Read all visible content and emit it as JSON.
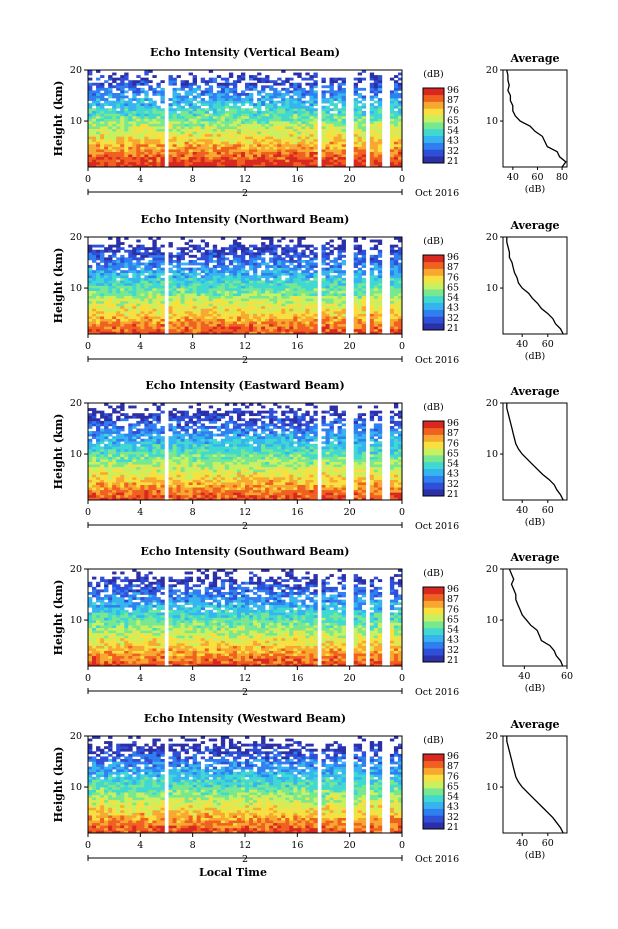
{
  "chart_data": [
    {
      "type": "heatmap",
      "title": "Echo Intensity (Vertical Beam)",
      "xlabel": "",
      "ylabel": "Height (km)",
      "xlim": [
        0,
        24
      ],
      "ylim": [
        1,
        20
      ],
      "x_ticks": [
        "0",
        "4",
        "8",
        "12",
        "16",
        "20",
        "0"
      ],
      "y_ticks": [
        "20",
        "10"
      ],
      "date_label": "2",
      "month_label": "Oct 2016",
      "colorbar": {
        "label": "(dB)",
        "ticks": [
          "96",
          "87",
          "76",
          "65",
          "54",
          "43",
          "32",
          "21"
        ]
      },
      "average": {
        "title": "Average",
        "xlabel": "(dB)",
        "x_ticks": [
          "40",
          "60",
          "80"
        ],
        "xlim": [
          32,
          84
        ],
        "profile": [
          [
            80,
            1
          ],
          [
            83,
            2
          ],
          [
            78,
            3
          ],
          [
            76,
            4
          ],
          [
            68,
            5
          ],
          [
            66,
            6
          ],
          [
            64,
            7
          ],
          [
            58,
            8
          ],
          [
            54,
            9
          ],
          [
            46,
            10
          ],
          [
            42,
            11
          ],
          [
            40,
            12
          ],
          [
            40,
            13
          ],
          [
            38,
            14
          ],
          [
            38,
            15
          ],
          [
            36,
            16
          ],
          [
            37,
            17
          ],
          [
            36,
            18
          ],
          [
            36,
            19
          ],
          [
            35,
            20
          ]
        ]
      }
    },
    {
      "type": "heatmap",
      "title": "Echo Intensity (Northward Beam)",
      "xlabel": "",
      "ylabel": "Height (km)",
      "xlim": [
        0,
        24
      ],
      "ylim": [
        1,
        20
      ],
      "x_ticks": [
        "0",
        "4",
        "8",
        "12",
        "16",
        "20",
        "0"
      ],
      "y_ticks": [
        "20",
        "10"
      ],
      "date_label": "2",
      "month_label": "Oct 2016",
      "colorbar": {
        "label": "(dB)",
        "ticks": [
          "96",
          "87",
          "76",
          "65",
          "54",
          "43",
          "32",
          "21"
        ]
      },
      "average": {
        "title": "Average",
        "xlabel": "(dB)",
        "x_ticks": [
          "40",
          "60"
        ],
        "xlim": [
          25,
          75
        ],
        "profile": [
          [
            72,
            1
          ],
          [
            70,
            2
          ],
          [
            66,
            3
          ],
          [
            64,
            4
          ],
          [
            60,
            5
          ],
          [
            55,
            6
          ],
          [
            52,
            7
          ],
          [
            48,
            8
          ],
          [
            45,
            9
          ],
          [
            40,
            10
          ],
          [
            37,
            11
          ],
          [
            36,
            12
          ],
          [
            34,
            13
          ],
          [
            33,
            14
          ],
          [
            32,
            15
          ],
          [
            30,
            16
          ],
          [
            30,
            17
          ],
          [
            29,
            18
          ],
          [
            28,
            19
          ],
          [
            28,
            20
          ]
        ]
      }
    },
    {
      "type": "heatmap",
      "title": "Echo Intensity (Eastward Beam)",
      "xlabel": "",
      "ylabel": "Height (km)",
      "xlim": [
        0,
        24
      ],
      "ylim": [
        1,
        20
      ],
      "x_ticks": [
        "0",
        "4",
        "8",
        "12",
        "16",
        "20",
        "0"
      ],
      "y_ticks": [
        "20",
        "10"
      ],
      "date_label": "2",
      "month_label": "Oct 2016",
      "colorbar": {
        "label": "(dB)",
        "ticks": [
          "96",
          "87",
          "76",
          "65",
          "54",
          "43",
          "32",
          "21"
        ]
      },
      "average": {
        "title": "Average",
        "xlabel": "(dB)",
        "x_ticks": [
          "40",
          "60"
        ],
        "xlim": [
          25,
          75
        ],
        "profile": [
          [
            72,
            1
          ],
          [
            70,
            2
          ],
          [
            67,
            3
          ],
          [
            65,
            4
          ],
          [
            61,
            5
          ],
          [
            56,
            6
          ],
          [
            52,
            7
          ],
          [
            48,
            8
          ],
          [
            44,
            9
          ],
          [
            40,
            10
          ],
          [
            37,
            11
          ],
          [
            35,
            12
          ],
          [
            34,
            13
          ],
          [
            33,
            14
          ],
          [
            32,
            15
          ],
          [
            31,
            16
          ],
          [
            30,
            17
          ],
          [
            29,
            18
          ],
          [
            28,
            19
          ],
          [
            28,
            20
          ]
        ]
      }
    },
    {
      "type": "heatmap",
      "title": "Echo Intensity (Southward Beam)",
      "xlabel": "",
      "ylabel": "Height (km)",
      "xlim": [
        0,
        24
      ],
      "ylim": [
        1,
        20
      ],
      "x_ticks": [
        "0",
        "4",
        "8",
        "12",
        "16",
        "20",
        "0"
      ],
      "y_ticks": [
        "20",
        "10"
      ],
      "date_label": "2",
      "month_label": "Oct 2016",
      "colorbar": {
        "label": "(dB)",
        "ticks": [
          "96",
          "87",
          "76",
          "65",
          "54",
          "43",
          "32",
          "21"
        ]
      },
      "average": {
        "title": "Average",
        "xlabel": "(dB)",
        "x_ticks": [
          "40",
          "60"
        ],
        "xlim": [
          30,
          60
        ],
        "profile": [
          [
            58,
            1
          ],
          [
            57,
            2
          ],
          [
            55,
            3
          ],
          [
            54,
            4
          ],
          [
            52,
            5
          ],
          [
            48,
            6
          ],
          [
            47,
            7
          ],
          [
            46,
            8
          ],
          [
            43,
            9
          ],
          [
            41,
            10
          ],
          [
            39,
            11
          ],
          [
            38,
            12
          ],
          [
            37,
            13
          ],
          [
            36,
            14
          ],
          [
            36,
            15
          ],
          [
            35,
            16
          ],
          [
            34,
            17
          ],
          [
            35,
            18
          ],
          [
            34,
            19
          ],
          [
            33,
            20
          ]
        ]
      }
    },
    {
      "type": "heatmap",
      "title": "Echo Intensity (Westward Beam)",
      "xlabel": "Local Time",
      "ylabel": "Height (km)",
      "xlim": [
        0,
        24
      ],
      "ylim": [
        1,
        20
      ],
      "x_ticks": [
        "0",
        "4",
        "8",
        "12",
        "16",
        "20",
        "0"
      ],
      "y_ticks": [
        "20",
        "10"
      ],
      "date_label": "2",
      "month_label": "Oct 2016",
      "colorbar": {
        "label": "(dB)",
        "ticks": [
          "96",
          "87",
          "76",
          "65",
          "54",
          "43",
          "32",
          "21"
        ]
      },
      "average": {
        "title": "Average",
        "xlabel": "(dB)",
        "x_ticks": [
          "40",
          "60"
        ],
        "xlim": [
          25,
          75
        ],
        "profile": [
          [
            72,
            1
          ],
          [
            70,
            2
          ],
          [
            67,
            3
          ],
          [
            64,
            4
          ],
          [
            60,
            5
          ],
          [
            56,
            6
          ],
          [
            52,
            7
          ],
          [
            48,
            8
          ],
          [
            44,
            9
          ],
          [
            40,
            10
          ],
          [
            37,
            11
          ],
          [
            35,
            12
          ],
          [
            34,
            13
          ],
          [
            33,
            14
          ],
          [
            32,
            15
          ],
          [
            31,
            16
          ],
          [
            30,
            17
          ],
          [
            29,
            18
          ],
          [
            28,
            19
          ],
          [
            28,
            20
          ]
        ]
      }
    }
  ]
}
